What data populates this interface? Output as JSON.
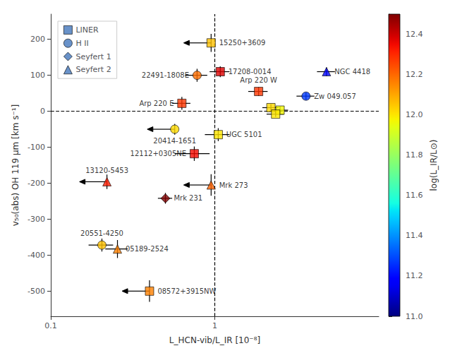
{
  "chart_data": {
    "type": "scatter",
    "xlabel": "L_HCN-vib/L_IR [10⁻⁸]",
    "ylabel": "v₅₀(abs) OH 119 μm [km s⁻¹]",
    "log": "x",
    "xlim": [
      0.1,
      10.0
    ],
    "xticks": [
      0.1,
      1
    ],
    "ylim": [
      -570,
      270
    ],
    "yticks": [
      -500,
      -400,
      -300,
      -200,
      -100,
      0,
      100,
      200
    ],
    "grid": false,
    "legend": "upper left",
    "dashed_x": 1.0,
    "dashed_y": 0.0,
    "colorbar": {
      "label": "log(L_IR/L⊙)",
      "range": [
        11.0,
        12.5
      ],
      "ticks": [
        {
          "value": 11.0,
          "label": "11.0"
        },
        11.2,
        11.4,
        11.6,
        11.8,
        {
          "value": 12.0,
          "label": "12.0"
        },
        12.2,
        12.4
      ],
      "color": "jet"
    },
    "series": [
      {
        "name": "LINER",
        "marker": "square",
        "color": "#4477bb"
      },
      {
        "name": "H II",
        "marker": "circle",
        "color": "#4477bb"
      },
      {
        "name": "Seyfert 1",
        "marker": "diamond",
        "color": "#4477bb"
      },
      {
        "name": "Seyfert 2",
        "marker": "triangle",
        "color": "#4477bb"
      }
    ],
    "points": [
      {
        "label": "15250+3609",
        "series": "LINER",
        "x": 0.95,
        "y": 190,
        "xerr": [
          0.0,
          0.0
        ],
        "yerr": [
          25,
          25
        ],
        "log_LIR": 12.06,
        "upper_limit_x": true
      },
      {
        "label": "22491-1808E",
        "series": "H II",
        "x": 0.78,
        "y": 100,
        "xerr": [
          0.12,
          0.12
        ],
        "yerr": [
          18,
          18
        ],
        "log_LIR": 12.19,
        "upper_limit_x": false
      },
      {
        "label": "17208-0014",
        "series": "LINER",
        "x": 1.08,
        "y": 110,
        "xerr": [
          0.15,
          0.15
        ],
        "yerr": [
          15,
          15
        ],
        "log_LIR": 12.38,
        "upper_limit_x": false
      },
      {
        "label": "NGC 4418",
        "series": "Seyfert 2",
        "x": 4.8,
        "y": 110,
        "xerr": [
          0.6,
          0.6
        ],
        "yerr": [
          12,
          12
        ],
        "log_LIR": 11.19,
        "upper_limit_x": false
      },
      {
        "label": "Arp 220 E",
        "series": "LINER",
        "x": 0.63,
        "y": 22,
        "xerr": [
          0.08,
          0.08
        ],
        "yerr": [
          18,
          18
        ],
        "log_LIR": 12.28,
        "upper_limit_x": false
      },
      {
        "label": "Arp 220 W",
        "series": "LINER",
        "x": 1.85,
        "y": 55,
        "xerr": [
          0.25,
          0.25
        ],
        "yerr": [
          12,
          12
        ],
        "log_LIR": 12.28,
        "upper_limit_x": false
      },
      {
        "label": null,
        "series": "LINER",
        "x": 2.2,
        "y": 10,
        "xerr": [
          0.25,
          0.25
        ],
        "yerr": [
          10,
          10
        ],
        "log_LIR": 12.02,
        "upper_limit_x": false
      },
      {
        "label": null,
        "series": "LINER",
        "x": 2.5,
        "y": 3,
        "xerr": [
          0.3,
          0.3
        ],
        "yerr": [
          10,
          10
        ],
        "log_LIR": 11.97,
        "upper_limit_x": false
      },
      {
        "label": null,
        "series": "LINER",
        "x": 2.35,
        "y": -8,
        "xerr": [
          0.28,
          0.28
        ],
        "yerr": [
          8,
          8
        ],
        "log_LIR": 12.0,
        "upper_limit_x": false
      },
      {
        "label": "Zw 049.057",
        "series": "H II",
        "x": 3.6,
        "y": 42,
        "xerr": [
          0.45,
          0.45
        ],
        "yerr": [
          10,
          10
        ],
        "log_LIR": 11.27,
        "upper_limit_x": false
      },
      {
        "label": "20414-1651",
        "series": "H II",
        "x": 0.57,
        "y": -50,
        "xerr": [
          0.0,
          0.0
        ],
        "yerr": [
          15,
          15
        ],
        "log_LIR": 12.02,
        "upper_limit_x": true
      },
      {
        "label": "UGC 5101",
        "series": "LINER",
        "x": 1.05,
        "y": -65,
        "xerr": [
          0.18,
          0.18
        ],
        "yerr": [
          18,
          18
        ],
        "log_LIR": 12.0,
        "upper_limit_x": false
      },
      {
        "label": "12112+0305NE",
        "series": "LINER",
        "x": 0.75,
        "y": -118,
        "xerr": [
          0.18,
          0.18
        ],
        "yerr": [
          20,
          20
        ],
        "log_LIR": 12.35,
        "upper_limit_x": false
      },
      {
        "label": "13120-5453",
        "series": "Seyfert 2",
        "x": 0.22,
        "y": -196,
        "xerr": [
          0.0,
          0.0
        ],
        "yerr": [
          20,
          20
        ],
        "log_LIR": 12.32,
        "upper_limit_x": true
      },
      {
        "label": "Mrk 231",
        "series": "Seyfert 1",
        "x": 0.5,
        "y": -242,
        "xerr": [
          0.05,
          0.05
        ],
        "yerr": [
          15,
          15
        ],
        "log_LIR": 12.57,
        "upper_limit_x": false
      },
      {
        "label": "Mrk 273",
        "series": "Seyfert 2",
        "x": 0.95,
        "y": -205,
        "xerr": [
          0.0,
          0.0
        ],
        "yerr": [
          30,
          30
        ],
        "log_LIR": 12.21,
        "upper_limit_x": true
      },
      {
        "label": "20551-4250",
        "series": "H II",
        "x": 0.205,
        "y": -372,
        "xerr": [
          0.035,
          0.035
        ],
        "yerr": [
          18,
          18
        ],
        "log_LIR": 12.06,
        "upper_limit_x": false
      },
      {
        "label": "05189-2524",
        "series": "Seyfert 2",
        "x": 0.255,
        "y": -383,
        "xerr": [
          0.04,
          0.04
        ],
        "yerr": [
          25,
          25
        ],
        "log_LIR": 12.16,
        "upper_limit_x": false
      },
      {
        "label": "08572+3915NW",
        "series": "LINER",
        "x": 0.4,
        "y": -500,
        "xerr": [
          0.0,
          0.0
        ],
        "yerr": [
          30,
          30
        ],
        "log_LIR": 12.16,
        "upper_limit_x": true
      }
    ]
  }
}
